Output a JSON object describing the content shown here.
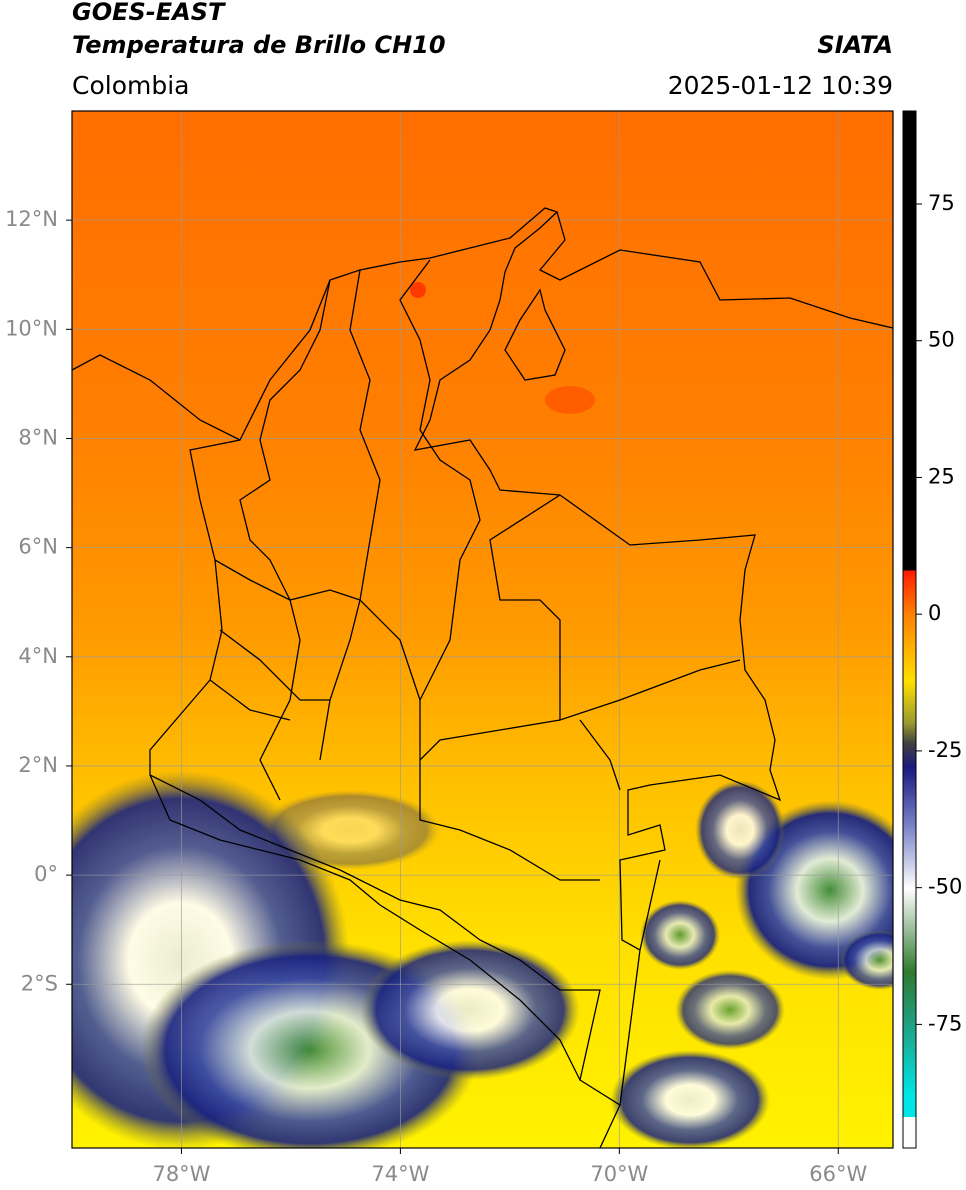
{
  "header": {
    "satellite": "GOES-EAST",
    "product": "Temperatura de Brillo CH10",
    "region": "Colombia",
    "source": "SIATA",
    "datetime": "2025-01-12 10:39"
  },
  "map": {
    "xlim": [
      -80,
      -65
    ],
    "ylim": [
      -5,
      14
    ],
    "xticks": [
      {
        "value": -78,
        "label": "78°W"
      },
      {
        "value": -74,
        "label": "74°W"
      },
      {
        "value": -70,
        "label": "70°W"
      },
      {
        "value": -66,
        "label": "66°W"
      }
    ],
    "yticks": [
      {
        "value": -2,
        "label": "2°S"
      },
      {
        "value": 0,
        "label": "0°"
      },
      {
        "value": 2,
        "label": "2°N"
      },
      {
        "value": 4,
        "label": "4°N"
      },
      {
        "value": 6,
        "label": "6°N"
      },
      {
        "value": 8,
        "label": "8°N"
      },
      {
        "value": 10,
        "label": "10°N"
      },
      {
        "value": 12,
        "label": "12°N"
      }
    ]
  },
  "colorbar": {
    "ylim": [
      -97.6,
      92
    ],
    "yticks": [
      -75,
      -50,
      -25,
      0,
      25,
      50,
      75
    ]
  }
}
